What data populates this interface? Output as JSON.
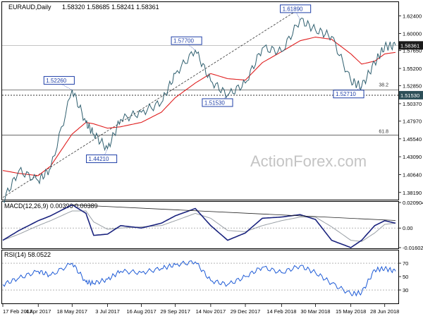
{
  "header": {
    "symbol": "EURAUD,Daily",
    "ohlc": "1.58320 1.58685 1.58241 1.58361"
  },
  "watermark": "ActionForex.com",
  "colors": {
    "price": "#2f5f6f",
    "ema": "#e02020",
    "macd_line": "#1a237e",
    "macd_signal": "#9aa0a6",
    "rsi": "#1e5bd6",
    "support": "#333333",
    "badge_border": "#1f3fa8",
    "badge_text": "#1f3fa8",
    "current_badge_bg": "#1a1a1a",
    "gridline": "#bbbbbb"
  },
  "chart_data": [
    {
      "type": "line",
      "panel": "price",
      "title": "EURAUD,Daily",
      "x": [
        "2017-02-17",
        "2017-03-10",
        "2017-04-04",
        "2017-04-20",
        "2017-05-18",
        "2017-06-05",
        "2017-06-15",
        "2017-07-03",
        "2017-07-20",
        "2017-08-16",
        "2017-09-11",
        "2017-09-29",
        "2017-10-25",
        "2017-11-14",
        "2017-12-06",
        "2017-12-29",
        "2018-01-20",
        "2018-02-14",
        "2018-03-10",
        "2018-03-30",
        "2018-04-20",
        "2018-05-15",
        "2018-05-29",
        "2018-06-15",
        "2018-06-28",
        "2018-07-12"
      ],
      "series": [
        {
          "values": [
            1.37,
            1.412,
            1.398,
            1.415,
            1.5226,
            1.478,
            1.462,
            1.4421,
            1.482,
            1.492,
            1.505,
            1.545,
            1.577,
            1.535,
            1.5153,
            1.532,
            1.58,
            1.575,
            1.6189,
            1.605,
            1.596,
            1.535,
            1.5271,
            1.56,
            1.582,
            1.5836
          ]
        },
        {
          "values": [
            1.412,
            1.408,
            1.405,
            1.418,
            1.462,
            1.478,
            1.476,
            1.47,
            1.472,
            1.478,
            1.492,
            1.512,
            1.532,
            1.545,
            1.538,
            1.536,
            1.56,
            1.575,
            1.59,
            1.595,
            1.592,
            1.572,
            1.558,
            1.562,
            1.572,
            1.574
          ]
        }
      ],
      "ylim": [
        1.372,
        1.643
      ],
      "y_ticks": [
        "1.62400",
        "1.60000",
        "1.57650",
        "1.55200",
        "1.52850",
        "1.50370",
        "1.47970",
        "1.45540",
        "1.43090",
        "1.40640",
        "1.38190"
      ],
      "x_ticks": [
        "17 Feb 2017",
        "4 Apr 2017",
        "18 May 2017",
        "3 Jul 2017",
        "16 Aug 2017",
        "29 Sep 2017",
        "14 Nov 2017",
        "29 Dec 2017",
        "14 Feb 2018",
        "30 Mar 2018",
        "15 May 2018",
        "28 Jun 2018"
      ],
      "annotations": [
        "1.52260",
        "1.44210",
        "1.57700",
        "1.51530",
        "1.61890",
        "1.52710",
        "38.2",
        "61.8"
      ],
      "current_price": "1.58361",
      "support_level": "1.51530",
      "grid": false
    },
    {
      "type": "line",
      "panel": "macd",
      "title": "MACD(12,26,9) 0.00396 0.00389",
      "series": [
        {
          "values": [
            -0.01,
            -0.002,
            0.006,
            0.01,
            0.019,
            0.012,
            -0.006,
            -0.005,
            0.002,
            0.0,
            0.004,
            0.01,
            0.016,
            0.002,
            -0.01,
            -0.004,
            0.008,
            0.009,
            0.011,
            0.007,
            -0.01,
            -0.016,
            -0.01,
            0.002,
            0.006,
            0.004
          ]
        },
        {
          "values": [
            -0.01,
            -0.005,
            0.002,
            0.006,
            0.014,
            0.014,
            0.005,
            -0.001,
            0.0,
            0.001,
            0.002,
            0.006,
            0.012,
            0.008,
            -0.002,
            -0.003,
            0.002,
            0.006,
            0.009,
            0.009,
            0.001,
            -0.01,
            -0.011,
            -0.004,
            0.003,
            0.004
          ]
        }
      ],
      "ylim": [
        -0.01602,
        0.020904
      ],
      "y_ticks": [
        "0.020904",
        "0.00",
        "-0.016023"
      ],
      "grid": false
    },
    {
      "type": "line",
      "panel": "rsi",
      "title": "RSI(14) 58.0522",
      "series": [
        {
          "values": [
            38,
            48,
            58,
            52,
            70,
            42,
            40,
            46,
            58,
            56,
            62,
            68,
            72,
            44,
            38,
            50,
            64,
            56,
            66,
            56,
            40,
            24,
            26,
            60,
            62,
            58
          ]
        }
      ],
      "ylim": [
        10,
        88
      ],
      "y_ticks": [
        "70",
        "50",
        "30"
      ],
      "levels": [
        70,
        30
      ],
      "grid": false
    }
  ]
}
